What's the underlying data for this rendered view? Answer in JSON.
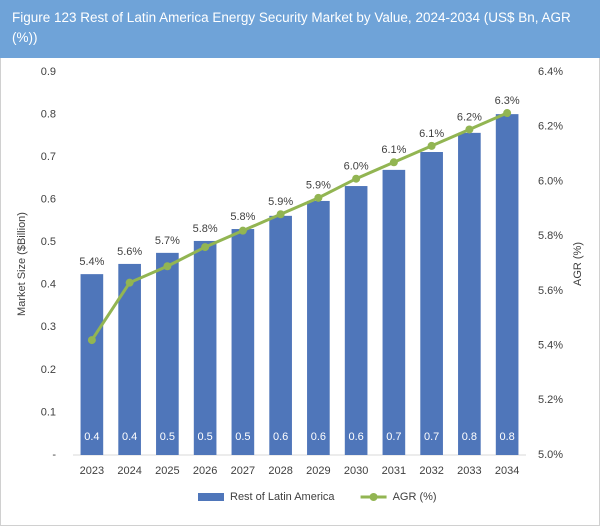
{
  "chart_data": {
    "type": "bar_line",
    "title": "Figure 123   Rest of Latin America Energy Security Market by Value, 2024-2034 (US$ Bn, AGR (%))",
    "y_label": "Market Size ($Billion)",
    "y2_label": "AGR (%)",
    "categories": [
      "2023",
      "2024",
      "2025",
      "2026",
      "2027",
      "2028",
      "2029",
      "2030",
      "2031",
      "2032",
      "2033",
      "2034"
    ],
    "series": [
      {
        "name": "Rest of Latin America",
        "type": "bar",
        "color": "#4f76ba",
        "values": [
          0.425,
          0.449,
          0.475,
          0.503,
          0.531,
          0.562,
          0.597,
          0.632,
          0.67,
          0.712,
          0.757,
          0.801
        ],
        "value_labels": [
          "0.4",
          "0.4",
          "0.5",
          "0.5",
          "0.5",
          "0.6",
          "0.6",
          "0.6",
          "0.7",
          "0.7",
          "0.8",
          "0.8"
        ]
      },
      {
        "name": "AGR (%)",
        "type": "line",
        "axis": "y2",
        "color": "#92b552",
        "values": [
          5.42,
          5.63,
          5.69,
          5.76,
          5.82,
          5.88,
          5.94,
          6.01,
          6.07,
          6.13,
          6.19,
          6.25
        ],
        "value_labels": [
          "5.4%",
          "5.6%",
          "5.7%",
          "5.8%",
          "5.8%",
          "5.9%",
          "5.9%",
          "6.0%",
          "6.1%",
          "6.1%",
          "6.2%",
          "6.3%"
        ]
      }
    ],
    "ylim": [
      0,
      0.9
    ],
    "yticks": [
      {
        "value": 0,
        "label": "-"
      },
      0.1,
      0.2,
      0.3,
      0.4,
      0.5,
      0.6,
      0.7,
      0.8,
      0.9
    ],
    "y2lim": [
      5.0,
      6.4
    ],
    "y2ticks": [
      {
        "value": 5.0,
        "label": "5.0%"
      },
      {
        "value": 5.2,
        "label": "5.2%"
      },
      {
        "value": 5.4,
        "label": "5.4%"
      },
      {
        "value": 5.6,
        "label": "5.6%"
      },
      {
        "value": 5.8,
        "label": "5.8%"
      },
      {
        "value": 6.0,
        "label": "6.0%"
      },
      {
        "value": 6.2,
        "label": "6.2%"
      },
      {
        "value": 6.4,
        "label": "6.4%"
      }
    ],
    "legend": "bottom"
  }
}
